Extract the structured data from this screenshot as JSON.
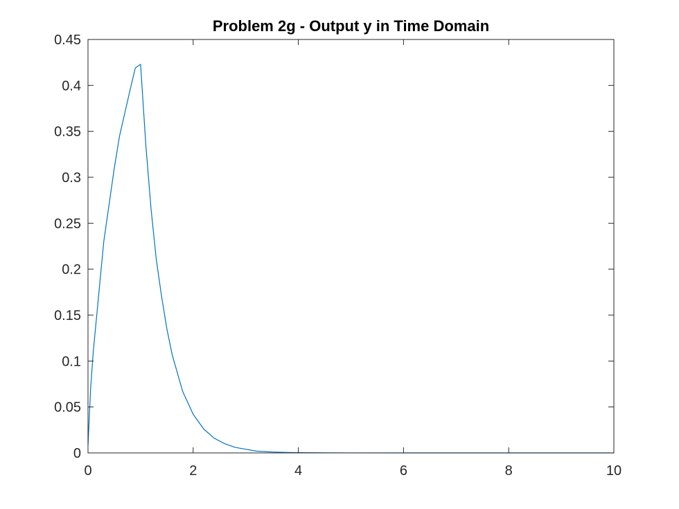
{
  "chart_data": {
    "type": "line",
    "title": "Problem 2g - Output y in Time Domain",
    "xlabel": "",
    "ylabel": "",
    "xlim": [
      0,
      10
    ],
    "ylim": [
      0,
      0.45
    ],
    "x_ticks": [
      0,
      2,
      4,
      6,
      8,
      10
    ],
    "x_tick_labels": [
      "0",
      "2",
      "4",
      "6",
      "8",
      "10"
    ],
    "y_ticks": [
      0,
      0.05,
      0.1,
      0.15,
      0.2,
      0.25,
      0.3,
      0.35,
      0.4,
      0.45
    ],
    "y_tick_labels": [
      "0",
      "0.05",
      "0.1",
      "0.15",
      "0.2",
      "0.25",
      "0.3",
      "0.35",
      "0.4",
      "0.45"
    ],
    "grid": false,
    "line_color": "#0072BD",
    "axis_color": "#262626",
    "series": [
      {
        "x": [
          0,
          0.05,
          0.1,
          0.2,
          0.3,
          0.4,
          0.5,
          0.6,
          0.7,
          0.8,
          0.9,
          1.0,
          1.1,
          1.2,
          1.3,
          1.4,
          1.5,
          1.6,
          1.8,
          2.0,
          2.2,
          2.4,
          2.6,
          2.8,
          3.0,
          3.2,
          3.5,
          3.8,
          4.0,
          4.5,
          5.0,
          6.0,
          7.0,
          8.0,
          9.0,
          10.0
        ],
        "y": [
          0.008,
          0.07,
          0.11,
          0.17,
          0.23,
          0.27,
          0.31,
          0.345,
          0.37,
          0.395,
          0.419,
          0.423,
          0.335,
          0.265,
          0.21,
          0.17,
          0.135,
          0.107,
          0.067,
          0.042,
          0.026,
          0.016,
          0.01,
          0.006,
          0.004,
          0.002,
          0.001,
          0.0005,
          0.0003,
          0.0001,
          3e-05,
          0,
          0,
          0,
          0,
          0
        ]
      }
    ]
  }
}
